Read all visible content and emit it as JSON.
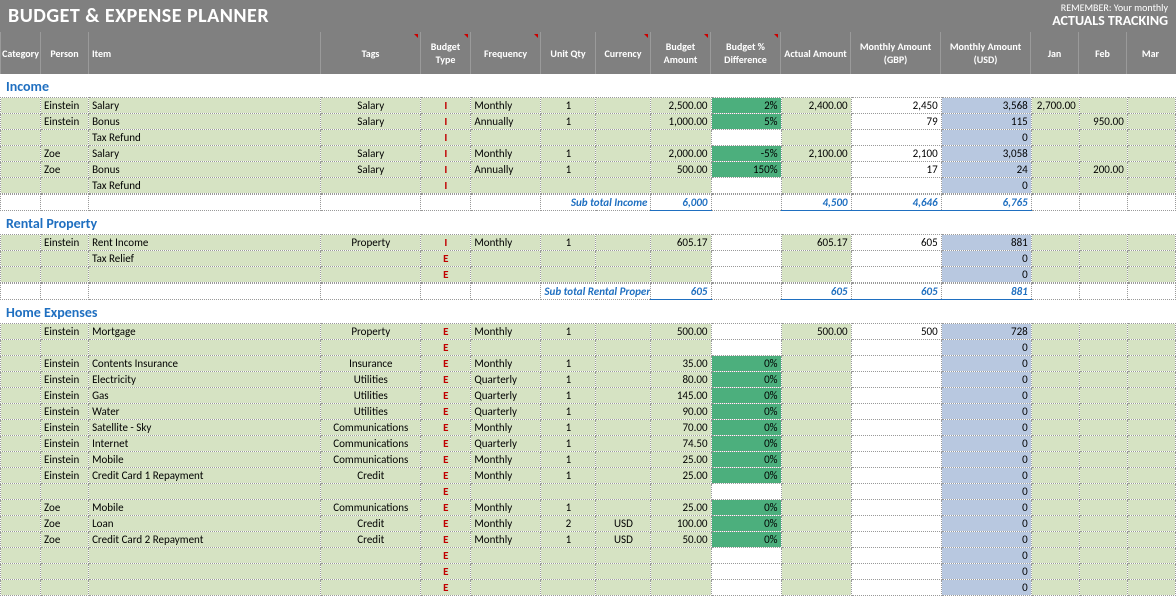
{
  "header": {
    "title": "BUDGET & EXPENSE PLANNER",
    "reminder_line1": "REMEMBER: Your monthly",
    "reminder_line2": "ACTUALS TRACKING"
  },
  "columns": {
    "category": "Category",
    "person": "Person",
    "item": "Item",
    "tags": "Tags",
    "budget_type": "Budget Type",
    "frequency": "Frequency",
    "unit_qty": "Unit Qty",
    "currency": "Currency",
    "budget_amount": "Budget Amount",
    "budget_pct_diff": "Budget % Difference",
    "actual_amount": "Actual Amount",
    "monthly_gbp": "Monthly Amount  (GBP)",
    "monthly_usd": "Monthly Amount  (USD)",
    "jan": "Jan",
    "feb": "Feb",
    "mar": "Mar"
  },
  "colors": {
    "header_bg": "#808080",
    "header_fg": "#ffffff",
    "row_green": "#d6e3c3",
    "pct_green": "#4caf7d",
    "usd_blue": "#b8c8e0",
    "section_blue": "#1f6fc0",
    "btype_red": "#c00000",
    "border_dotted": "#999999"
  },
  "sections": [
    {
      "title": "Income",
      "subtotal_label": "Sub total Income",
      "subtotal": {
        "budget": "6,000",
        "actual": "4,500",
        "gbp": "4,646",
        "usd": "6,765"
      },
      "rows": [
        {
          "person": "Einstein",
          "item": "Salary",
          "tags": "Salary",
          "btype": "I",
          "freq": "Monthly",
          "uqty": "1",
          "curr": "",
          "bamt": "2,500.00",
          "bpct": "2%",
          "aamt": "2,400.00",
          "gbp": "2,450",
          "usd": "3,568",
          "jan": "2,700.00",
          "feb": "",
          "mar": ""
        },
        {
          "person": "Einstein",
          "item": "Bonus",
          "tags": "Salary",
          "btype": "I",
          "freq": "Annually",
          "uqty": "1",
          "curr": "",
          "bamt": "1,000.00",
          "bpct": "5%",
          "aamt": "",
          "gbp": "79",
          "usd": "115",
          "jan": "",
          "feb": "950.00",
          "mar": ""
        },
        {
          "person": "",
          "item": "Tax Refund",
          "tags": "",
          "btype": "I",
          "freq": "",
          "uqty": "",
          "curr": "",
          "bamt": "",
          "bpct": "",
          "aamt": "",
          "gbp": "",
          "usd": "0",
          "jan": "",
          "feb": "",
          "mar": ""
        },
        {
          "person": "Zoe",
          "item": "Salary",
          "tags": "Salary",
          "btype": "I",
          "freq": "Monthly",
          "uqty": "1",
          "curr": "",
          "bamt": "2,000.00",
          "bpct": "-5%",
          "aamt": "2,100.00",
          "gbp": "2,100",
          "usd": "3,058",
          "jan": "",
          "feb": "",
          "mar": ""
        },
        {
          "person": "Zoe",
          "item": "Bonus",
          "tags": "Salary",
          "btype": "I",
          "freq": "Annually",
          "uqty": "1",
          "curr": "",
          "bamt": "500.00",
          "bpct": "150%",
          "aamt": "",
          "gbp": "17",
          "usd": "24",
          "jan": "",
          "feb": "200.00",
          "mar": ""
        },
        {
          "person": "",
          "item": "Tax Refund",
          "tags": "",
          "btype": "I",
          "freq": "",
          "uqty": "",
          "curr": "",
          "bamt": "",
          "bpct": "",
          "aamt": "",
          "gbp": "",
          "usd": "0",
          "jan": "",
          "feb": "",
          "mar": ""
        }
      ]
    },
    {
      "title": "Rental Property",
      "subtotal_label": "Sub total Rental Property",
      "subtotal": {
        "budget": "605",
        "actual": "605",
        "gbp": "605",
        "usd": "881"
      },
      "rows": [
        {
          "person": "Einstein",
          "item": "Rent Income",
          "tags": "Property",
          "btype": "I",
          "freq": "Monthly",
          "uqty": "1",
          "curr": "",
          "bamt": "605.17",
          "bpct": "",
          "aamt": "605.17",
          "gbp": "605",
          "usd": "881",
          "jan": "",
          "feb": "",
          "mar": ""
        },
        {
          "person": "",
          "item": "Tax Relief",
          "tags": "",
          "btype": "E",
          "freq": "",
          "uqty": "",
          "curr": "",
          "bamt": "",
          "bpct": "",
          "aamt": "",
          "gbp": "",
          "usd": "0",
          "jan": "",
          "feb": "",
          "mar": ""
        },
        {
          "person": "",
          "item": "",
          "tags": "",
          "btype": "E",
          "freq": "",
          "uqty": "",
          "curr": "",
          "bamt": "",
          "bpct": "",
          "aamt": "",
          "gbp": "",
          "usd": "0",
          "jan": "",
          "feb": "",
          "mar": ""
        }
      ]
    },
    {
      "title": "Home Expenses",
      "subtotal_label": "",
      "subtotal": null,
      "rows": [
        {
          "person": "Einstein",
          "item": "Mortgage",
          "tags": "Property",
          "btype": "E",
          "freq": "Monthly",
          "uqty": "1",
          "curr": "",
          "bamt": "500.00",
          "bpct": "",
          "aamt": "500.00",
          "gbp": "500",
          "usd": "728",
          "jan": "",
          "feb": "",
          "mar": ""
        },
        {
          "person": "",
          "item": "",
          "tags": "",
          "btype": "E",
          "freq": "",
          "uqty": "",
          "curr": "",
          "bamt": "",
          "bpct": "",
          "aamt": "",
          "gbp": "",
          "usd": "0",
          "jan": "",
          "feb": "",
          "mar": ""
        },
        {
          "person": "Einstein",
          "item": "Contents Insurance",
          "tags": "Insurance",
          "btype": "E",
          "freq": "Monthly",
          "uqty": "1",
          "curr": "",
          "bamt": "35.00",
          "bpct": "0%",
          "aamt": "",
          "gbp": "",
          "usd": "0",
          "jan": "",
          "feb": "",
          "mar": ""
        },
        {
          "person": "Einstein",
          "item": "Electricity",
          "tags": "Utilities",
          "btype": "E",
          "freq": "Quarterly",
          "uqty": "1",
          "curr": "",
          "bamt": "80.00",
          "bpct": "0%",
          "aamt": "",
          "gbp": "",
          "usd": "0",
          "jan": "",
          "feb": "",
          "mar": ""
        },
        {
          "person": "Einstein",
          "item": "Gas",
          "tags": "Utilities",
          "btype": "E",
          "freq": "Quarterly",
          "uqty": "1",
          "curr": "",
          "bamt": "145.00",
          "bpct": "0%",
          "aamt": "",
          "gbp": "",
          "usd": "0",
          "jan": "",
          "feb": "",
          "mar": ""
        },
        {
          "person": "Einstein",
          "item": "Water",
          "tags": "Utilities",
          "btype": "E",
          "freq": "Quarterly",
          "uqty": "1",
          "curr": "",
          "bamt": "90.00",
          "bpct": "0%",
          "aamt": "",
          "gbp": "",
          "usd": "0",
          "jan": "",
          "feb": "",
          "mar": ""
        },
        {
          "person": "Einstein",
          "item": "Satellite - Sky",
          "tags": "Communications",
          "btype": "E",
          "freq": "Monthly",
          "uqty": "1",
          "curr": "",
          "bamt": "70.00",
          "bpct": "0%",
          "aamt": "",
          "gbp": "",
          "usd": "0",
          "jan": "",
          "feb": "",
          "mar": ""
        },
        {
          "person": "Einstein",
          "item": "Internet",
          "tags": "Communications",
          "btype": "E",
          "freq": "Quarterly",
          "uqty": "1",
          "curr": "",
          "bamt": "74.50",
          "bpct": "0%",
          "aamt": "",
          "gbp": "",
          "usd": "0",
          "jan": "",
          "feb": "",
          "mar": ""
        },
        {
          "person": "Einstein",
          "item": "Mobile",
          "tags": "Communications",
          "btype": "E",
          "freq": "Monthly",
          "uqty": "1",
          "curr": "",
          "bamt": "25.00",
          "bpct": "0%",
          "aamt": "",
          "gbp": "",
          "usd": "0",
          "jan": "",
          "feb": "",
          "mar": ""
        },
        {
          "person": "Einstein",
          "item": "Credit Card 1 Repayment",
          "tags": "Credit",
          "btype": "E",
          "freq": "Monthly",
          "uqty": "1",
          "curr": "",
          "bamt": "25.00",
          "bpct": "0%",
          "aamt": "",
          "gbp": "",
          "usd": "0",
          "jan": "",
          "feb": "",
          "mar": ""
        },
        {
          "person": "",
          "item": "",
          "tags": "",
          "btype": "E",
          "freq": "",
          "uqty": "",
          "curr": "",
          "bamt": "",
          "bpct": "",
          "aamt": "",
          "gbp": "",
          "usd": "0",
          "jan": "",
          "feb": "",
          "mar": ""
        },
        {
          "person": "Zoe",
          "item": "Mobile",
          "tags": "Communications",
          "btype": "E",
          "freq": "Monthly",
          "uqty": "1",
          "curr": "",
          "bamt": "25.00",
          "bpct": "0%",
          "aamt": "",
          "gbp": "",
          "usd": "0",
          "jan": "",
          "feb": "",
          "mar": ""
        },
        {
          "person": "Zoe",
          "item": "Loan",
          "tags": "Credit",
          "btype": "E",
          "freq": "Monthly",
          "uqty": "2",
          "curr": "USD",
          "bamt": "100.00",
          "bpct": "0%",
          "aamt": "",
          "gbp": "",
          "usd": "0",
          "jan": "",
          "feb": "",
          "mar": ""
        },
        {
          "person": "Zoe",
          "item": "Credit Card 2 Repayment",
          "tags": "Credit",
          "btype": "E",
          "freq": "Monthly",
          "uqty": "1",
          "curr": "USD",
          "bamt": "50.00",
          "bpct": "0%",
          "aamt": "",
          "gbp": "",
          "usd": "0",
          "jan": "",
          "feb": "",
          "mar": ""
        },
        {
          "person": "",
          "item": "",
          "tags": "",
          "btype": "E",
          "freq": "",
          "uqty": "",
          "curr": "",
          "bamt": "",
          "bpct": "",
          "aamt": "",
          "gbp": "",
          "usd": "0",
          "jan": "",
          "feb": "",
          "mar": ""
        },
        {
          "person": "",
          "item": "",
          "tags": "",
          "btype": "E",
          "freq": "",
          "uqty": "",
          "curr": "",
          "bamt": "",
          "bpct": "",
          "aamt": "",
          "gbp": "",
          "usd": "0",
          "jan": "",
          "feb": "",
          "mar": ""
        },
        {
          "person": "",
          "item": "",
          "tags": "",
          "btype": "E",
          "freq": "",
          "uqty": "",
          "curr": "",
          "bamt": "",
          "bpct": "",
          "aamt": "",
          "gbp": "",
          "usd": "0",
          "jan": "",
          "feb": "",
          "mar": ""
        }
      ]
    }
  ]
}
